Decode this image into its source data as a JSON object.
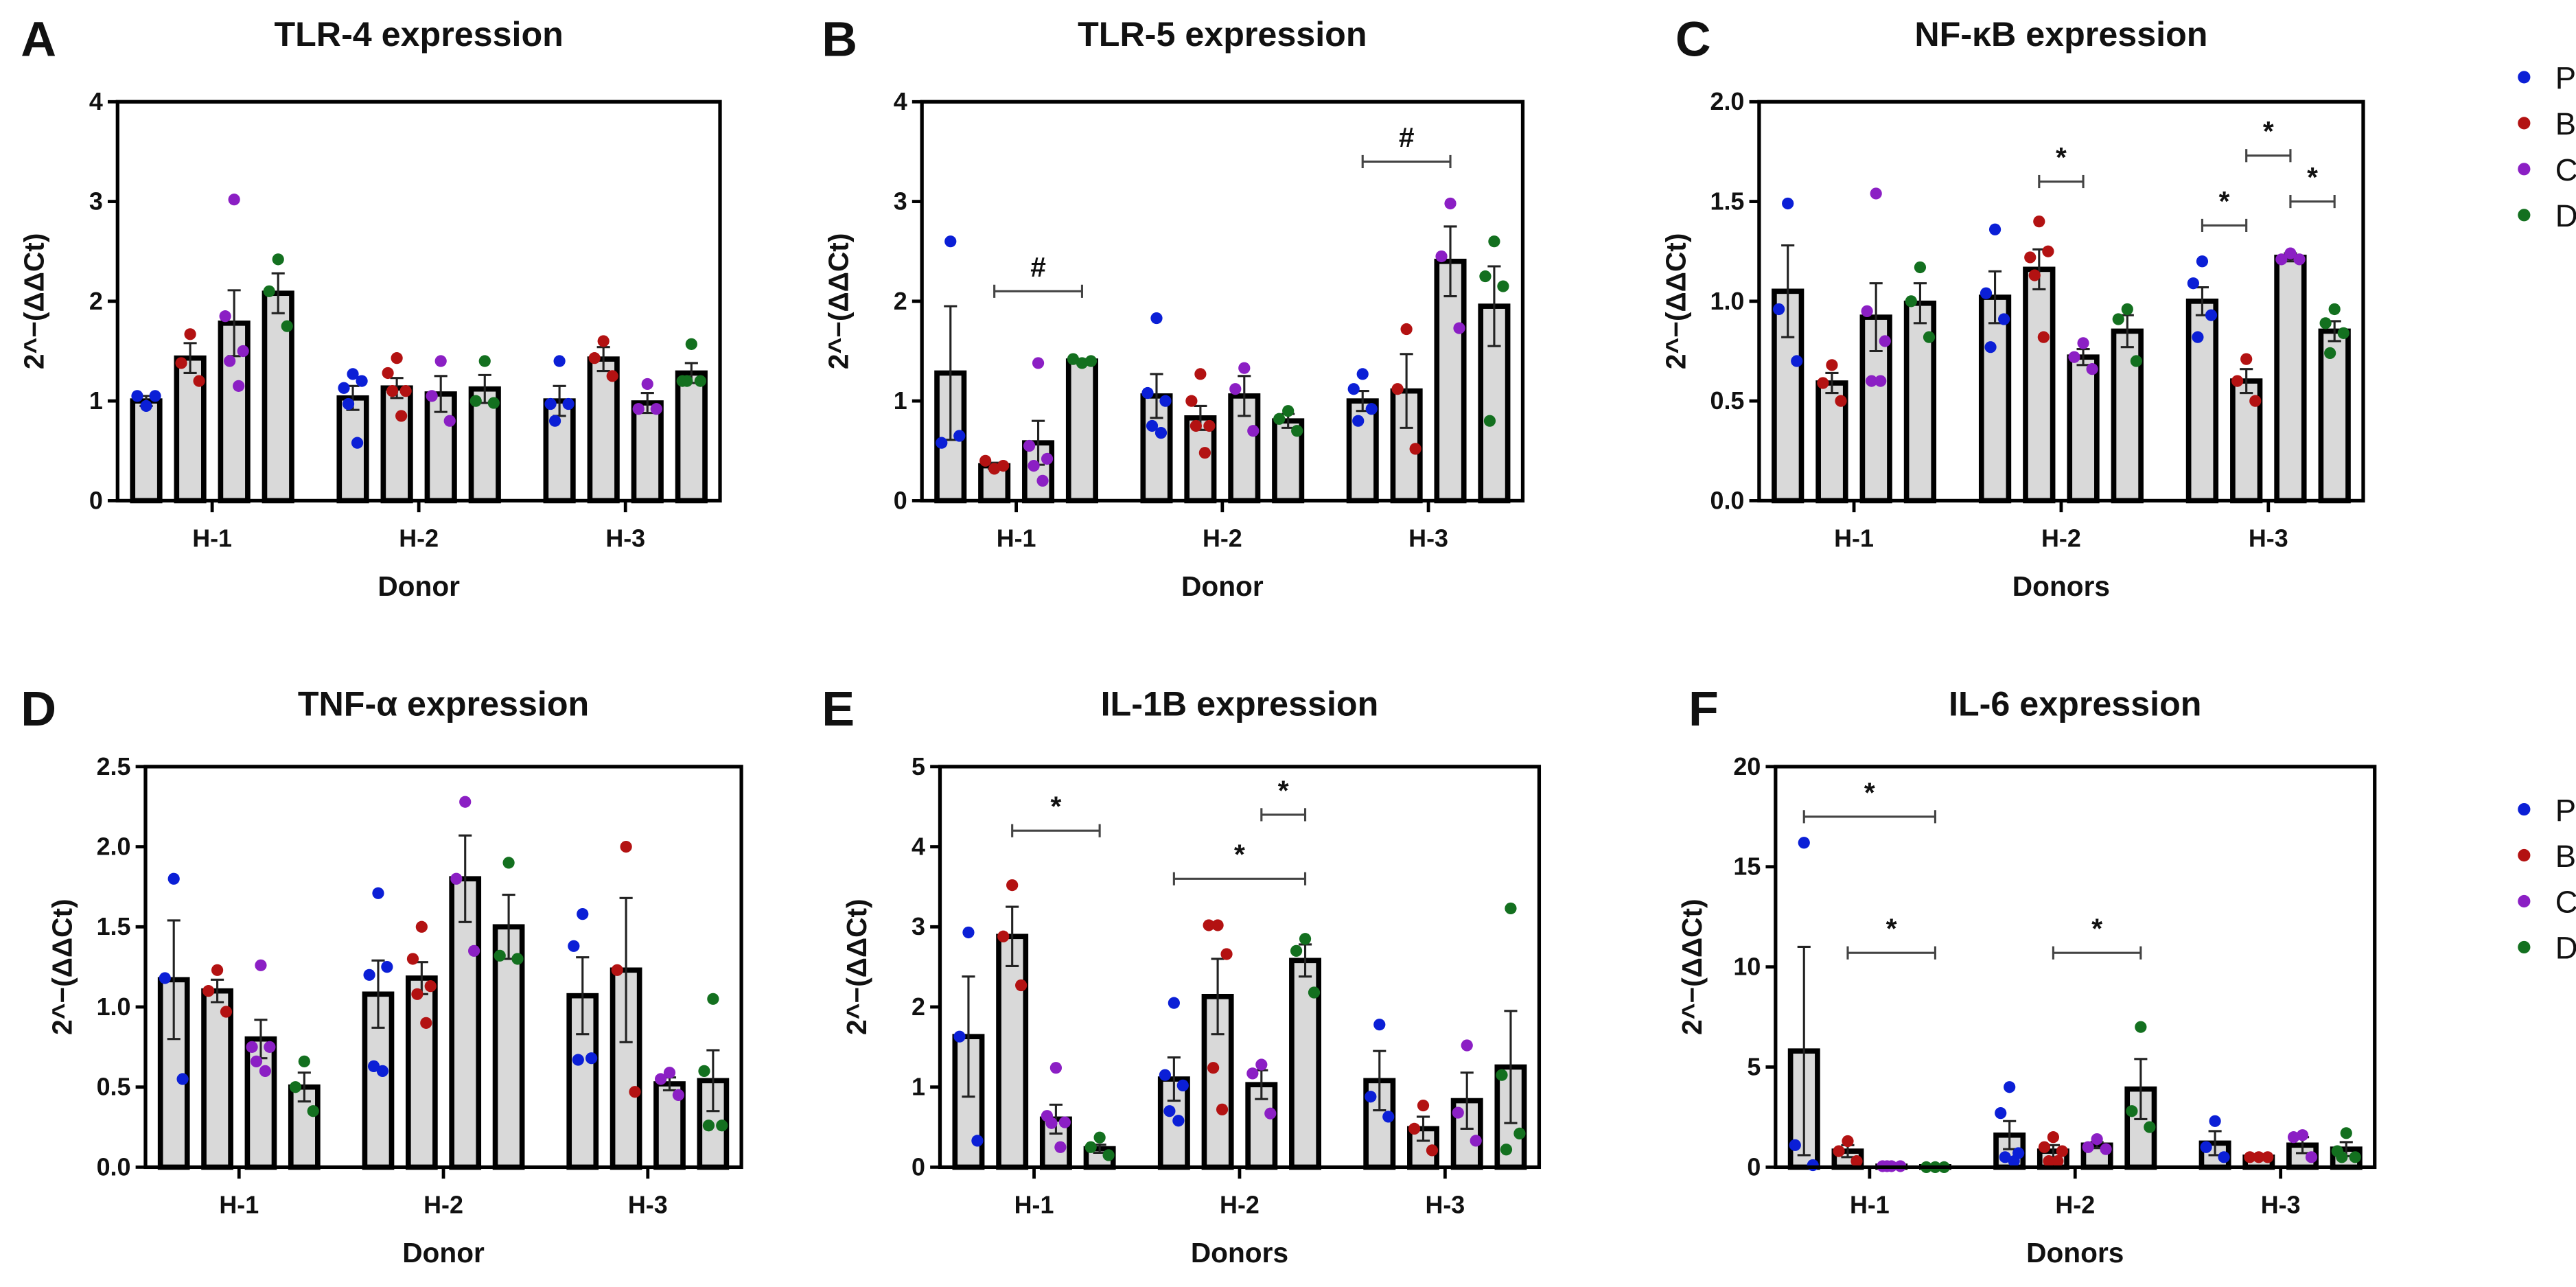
{
  "colors": {
    "P": "#0b1fd6",
    "B": "#b31212",
    "C": "#8b1fc4",
    "D": "#13701f",
    "bar_fill": "#d9d9d9"
  },
  "legend": [
    {
      "key": "P",
      "label": "P"
    },
    {
      "key": "B",
      "label": "B"
    },
    {
      "key": "C",
      "label": "C"
    },
    {
      "key": "D",
      "label": "D"
    }
  ],
  "chart_data": [
    {
      "type": "bar",
      "letter": "A",
      "title": "TLR-4 expression",
      "xlabel": "Donor",
      "ylabel": "2^−(ΔΔCt)",
      "ylim": [
        0,
        4
      ],
      "yticks": [
        "0",
        "1",
        "2",
        "3",
        "4"
      ],
      "categories": [
        "H-1",
        "H-2",
        "H-3"
      ],
      "series_names": [
        "P",
        "B",
        "C",
        "D"
      ],
      "groups": [
        [
          {
            "mean": 1.0,
            "sem": 0.05,
            "points": [
              0.95,
              1.05,
              1.05
            ]
          },
          {
            "mean": 1.43,
            "sem": 0.15,
            "points": [
              1.67,
              1.38,
              1.2
            ]
          },
          {
            "mean": 1.78,
            "sem": 0.33,
            "points": [
              3.02,
              1.85,
              1.5,
              1.4,
              1.15
            ]
          },
          {
            "mean": 2.08,
            "sem": 0.2,
            "points": [
              2.42,
              2.1,
              1.75
            ]
          }
        ],
        [
          {
            "mean": 1.03,
            "sem": 0.12,
            "points": [
              1.27,
              1.13,
              1.2,
              0.97,
              0.58
            ]
          },
          {
            "mean": 1.13,
            "sem": 0.1,
            "points": [
              1.43,
              1.28,
              1.1,
              1.1,
              0.85
            ]
          },
          {
            "mean": 1.07,
            "sem": 0.18,
            "points": [
              1.4,
              1.05,
              0.8
            ]
          },
          {
            "mean": 1.12,
            "sem": 0.14,
            "points": [
              1.4,
              1.0,
              0.98
            ]
          }
        ],
        [
          {
            "mean": 1.0,
            "sem": 0.15,
            "points": [
              1.4,
              0.97,
              0.97,
              0.8
            ]
          },
          {
            "mean": 1.42,
            "sem": 0.12,
            "points": [
              1.6,
              1.43,
              1.25
            ]
          },
          {
            "mean": 0.98,
            "sem": 0.1,
            "points": [
              1.17,
              0.92,
              0.92
            ]
          },
          {
            "mean": 1.28,
            "sem": 0.1,
            "points": [
              1.57,
              1.2,
              1.2,
              1.2
            ]
          }
        ]
      ],
      "annotations": []
    },
    {
      "type": "bar",
      "letter": "B",
      "title": "TLR-5 expression",
      "xlabel": "Donor",
      "ylabel": "2^−(ΔΔCt)",
      "ylim": [
        0,
        4
      ],
      "yticks": [
        "0",
        "1",
        "2",
        "3",
        "4"
      ],
      "categories": [
        "H-1",
        "H-2",
        "H-3"
      ],
      "series_names": [
        "P",
        "B",
        "C",
        "D"
      ],
      "groups": [
        [
          {
            "mean": 1.28,
            "sem": 0.67,
            "points": [
              2.6,
              0.58,
              0.65
            ]
          },
          {
            "mean": 0.35,
            "sem": 0.03,
            "points": [
              0.32,
              0.4,
              0.35
            ]
          },
          {
            "mean": 0.58,
            "sem": 0.22,
            "points": [
              1.38,
              0.55,
              0.42,
              0.35,
              0.2
            ]
          },
          {
            "mean": 1.4,
            "sem": 0.02,
            "points": [
              1.38,
              1.42,
              1.4
            ]
          }
        ],
        [
          {
            "mean": 1.05,
            "sem": 0.22,
            "points": [
              1.83,
              1.08,
              1.0,
              0.75,
              0.68
            ]
          },
          {
            "mean": 0.83,
            "sem": 0.12,
            "points": [
              1.27,
              1.0,
              0.75,
              0.75,
              0.48
            ]
          },
          {
            "mean": 1.05,
            "sem": 0.2,
            "points": [
              1.33,
              1.12,
              0.7
            ]
          },
          {
            "mean": 0.8,
            "sem": 0.07,
            "points": [
              0.9,
              0.82,
              0.7
            ]
          }
        ],
        [
          {
            "mean": 1.0,
            "sem": 0.1,
            "points": [
              1.27,
              1.12,
              0.92,
              0.8
            ]
          },
          {
            "mean": 1.1,
            "sem": 0.37,
            "points": [
              1.72,
              1.12,
              0.52
            ]
          },
          {
            "mean": 2.4,
            "sem": 0.35,
            "points": [
              2.98,
              2.45,
              1.73
            ]
          },
          {
            "mean": 1.95,
            "sem": 0.4,
            "points": [
              2.6,
              2.25,
              2.15,
              0.8
            ]
          }
        ]
      ],
      "annotations": [
        {
          "group": 0,
          "from": 1,
          "to": 3,
          "y": 2.1,
          "label": "#"
        },
        {
          "group": 2,
          "from": 0,
          "to": 2,
          "y": 3.4,
          "label": "#"
        }
      ]
    },
    {
      "type": "bar",
      "letter": "C",
      "title": "NF-κB expression",
      "xlabel": "Donors",
      "ylabel": "2^−(ΔΔCt)",
      "ylim": [
        0,
        2
      ],
      "yticks": [
        "0.0",
        "0.5",
        "1.0",
        "1.5",
        "2.0"
      ],
      "categories": [
        "H-1",
        "H-2",
        "H-3"
      ],
      "series_names": [
        "P",
        "B",
        "C",
        "D"
      ],
      "groups": [
        [
          {
            "mean": 1.05,
            "sem": 0.23,
            "points": [
              1.49,
              0.96,
              0.7
            ]
          },
          {
            "mean": 0.59,
            "sem": 0.05,
            "points": [
              0.68,
              0.59,
              0.5
            ]
          },
          {
            "mean": 0.92,
            "sem": 0.17,
            "points": [
              1.54,
              0.95,
              0.8,
              0.6,
              0.6
            ]
          },
          {
            "mean": 0.99,
            "sem": 0.1,
            "points": [
              1.17,
              1.0,
              0.82
            ]
          }
        ],
        [
          {
            "mean": 1.02,
            "sem": 0.13,
            "points": [
              1.36,
              1.04,
              0.91,
              0.77
            ]
          },
          {
            "mean": 1.16,
            "sem": 0.1,
            "points": [
              1.4,
              1.22,
              1.25,
              1.13,
              0.82
            ]
          },
          {
            "mean": 0.72,
            "sem": 0.04,
            "points": [
              0.79,
              0.72,
              0.66
            ]
          },
          {
            "mean": 0.85,
            "sem": 0.08,
            "points": [
              0.96,
              0.91,
              0.7
            ]
          }
        ],
        [
          {
            "mean": 1.0,
            "sem": 0.07,
            "points": [
              1.2,
              1.09,
              0.93,
              0.82
            ]
          },
          {
            "mean": 0.6,
            "sem": 0.06,
            "points": [
              0.71,
              0.6,
              0.5
            ]
          },
          {
            "mean": 1.22,
            "sem": 0.02,
            "points": [
              1.24,
              1.21,
              1.21
            ]
          },
          {
            "mean": 0.85,
            "sem": 0.05,
            "points": [
              0.96,
              0.89,
              0.84,
              0.74
            ]
          }
        ]
      ],
      "annotations": [
        {
          "group": 1,
          "from": 1,
          "to": 2,
          "y": 1.6,
          "label": "*"
        },
        {
          "group": 2,
          "from": 0,
          "to": 1,
          "y": 1.38,
          "label": "*"
        },
        {
          "group": 2,
          "from": 1,
          "to": 2,
          "y": 1.73,
          "label": "*"
        },
        {
          "group": 2,
          "from": 2,
          "to": 3,
          "y": 1.5,
          "label": "*"
        }
      ]
    },
    {
      "type": "bar",
      "letter": "D",
      "title": "TNF-α expression",
      "xlabel": "Donor",
      "ylabel": "2^−(ΔΔCt)",
      "ylim": [
        0,
        2.5
      ],
      "yticks": [
        "0.0",
        "0.5",
        "1.0",
        "1.5",
        "2.0",
        "2.5"
      ],
      "categories": [
        "H-1",
        "H-2",
        "H-3"
      ],
      "series_names": [
        "P",
        "B",
        "C",
        "D"
      ],
      "groups": [
        [
          {
            "mean": 1.17,
            "sem": 0.37,
            "points": [
              1.8,
              1.18,
              0.55
            ]
          },
          {
            "mean": 1.1,
            "sem": 0.07,
            "points": [
              1.23,
              1.1,
              0.97
            ]
          },
          {
            "mean": 0.8,
            "sem": 0.12,
            "points": [
              1.26,
              0.75,
              0.75,
              0.66,
              0.6
            ]
          },
          {
            "mean": 0.5,
            "sem": 0.09,
            "points": [
              0.66,
              0.5,
              0.35
            ]
          }
        ],
        [
          {
            "mean": 1.08,
            "sem": 0.21,
            "points": [
              1.71,
              1.2,
              1.25,
              0.63,
              0.6
            ]
          },
          {
            "mean": 1.18,
            "sem": 0.1,
            "points": [
              1.5,
              1.3,
              1.13,
              1.08,
              0.9
            ]
          },
          {
            "mean": 1.8,
            "sem": 0.27,
            "points": [
              2.28,
              1.8,
              1.35
            ]
          },
          {
            "mean": 1.5,
            "sem": 0.2,
            "points": [
              1.9,
              1.32,
              1.3
            ]
          }
        ],
        [
          {
            "mean": 1.07,
            "sem": 0.24,
            "points": [
              1.58,
              1.38,
              0.68,
              0.67
            ]
          },
          {
            "mean": 1.23,
            "sem": 0.45,
            "points": [
              2.0,
              1.23,
              0.47
            ]
          },
          {
            "mean": 0.52,
            "sem": 0.04,
            "points": [
              0.59,
              0.55,
              0.45
            ]
          },
          {
            "mean": 0.54,
            "sem": 0.19,
            "points": [
              1.05,
              0.6,
              0.26,
              0.26
            ]
          }
        ]
      ],
      "annotations": []
    },
    {
      "type": "bar",
      "letter": "E",
      "title": "IL-1B expression",
      "xlabel": "Donors",
      "ylabel": "2^−(ΔΔCt)",
      "ylim": [
        0,
        5
      ],
      "yticks": [
        "0",
        "1",
        "2",
        "3",
        "4",
        "5"
      ],
      "categories": [
        "H-1",
        "H-2",
        "H-3"
      ],
      "series_names": [
        "P",
        "B",
        "C",
        "D"
      ],
      "groups": [
        [
          {
            "mean": 1.63,
            "sem": 0.75,
            "points": [
              2.93,
              1.63,
              0.33
            ]
          },
          {
            "mean": 2.88,
            "sem": 0.37,
            "points": [
              3.52,
              2.88,
              2.27
            ]
          },
          {
            "mean": 0.6,
            "sem": 0.18,
            "points": [
              1.24,
              0.64,
              0.56,
              0.55,
              0.25
            ]
          },
          {
            "mean": 0.23,
            "sem": 0.05,
            "points": [
              0.37,
              0.25,
              0.15
            ]
          }
        ],
        [
          {
            "mean": 1.1,
            "sem": 0.27,
            "points": [
              2.05,
              1.15,
              1.02,
              0.7,
              0.58
            ]
          },
          {
            "mean": 2.13,
            "sem": 0.47,
            "points": [
              3.02,
              3.02,
              2.66,
              1.24,
              0.72
            ]
          },
          {
            "mean": 1.03,
            "sem": 0.18,
            "points": [
              1.28,
              1.17,
              0.67
            ]
          },
          {
            "mean": 2.58,
            "sem": 0.2,
            "points": [
              2.85,
              2.7,
              2.18
            ]
          }
        ],
        [
          {
            "mean": 1.08,
            "sem": 0.37,
            "points": [
              1.78,
              0.88,
              0.63
            ]
          },
          {
            "mean": 0.48,
            "sem": 0.15,
            "points": [
              0.77,
              0.48,
              0.21
            ]
          },
          {
            "mean": 0.83,
            "sem": 0.35,
            "points": [
              1.52,
              0.68,
              0.33
            ]
          },
          {
            "mean": 1.25,
            "sem": 0.7,
            "points": [
              3.23,
              1.15,
              0.42,
              0.22
            ]
          }
        ]
      ],
      "annotations": [
        {
          "group": 0,
          "from": 1,
          "to": 3,
          "y": 4.2,
          "label": "*"
        },
        {
          "group": 1,
          "from": 0,
          "to": 3,
          "y": 3.6,
          "label": "*"
        },
        {
          "group": 1,
          "from": 2,
          "to": 3,
          "y": 4.4,
          "label": "*"
        }
      ]
    },
    {
      "type": "bar",
      "letter": "F",
      "title": "IL-6 expression",
      "xlabel": "Donors",
      "ylabel": "2^−(ΔΔCt)",
      "ylim": [
        0,
        20
      ],
      "yticks": [
        "0",
        "5",
        "10",
        "15",
        "20"
      ],
      "categories": [
        "H-1",
        "H-2",
        "H-3"
      ],
      "series_names": [
        "P",
        "B",
        "C",
        "D"
      ],
      "groups": [
        [
          {
            "mean": 5.8,
            "sem": 5.2,
            "points": [
              16.2,
              1.1,
              0.1
            ]
          },
          {
            "mean": 0.8,
            "sem": 0.3,
            "points": [
              1.3,
              0.8,
              0.3
            ]
          },
          {
            "mean": 0.05,
            "sem": 0.01,
            "points": [
              0.05,
              0.05,
              0.05,
              0.05
            ]
          },
          {
            "mean": 0.02,
            "sem": 0.01,
            "points": [
              0.0,
              0.0,
              0.0
            ]
          }
        ],
        [
          {
            "mean": 1.6,
            "sem": 0.7,
            "points": [
              4.0,
              2.7,
              0.7,
              0.5,
              0.3
            ]
          },
          {
            "mean": 0.8,
            "sem": 0.3,
            "points": [
              1.5,
              1.0,
              0.8,
              0.3,
              0.3
            ]
          },
          {
            "mean": 1.1,
            "sem": 0.15,
            "points": [
              1.4,
              1.0,
              0.9
            ]
          },
          {
            "mean": 3.9,
            "sem": 1.5,
            "points": [
              7.0,
              2.8,
              2.0
            ]
          }
        ],
        [
          {
            "mean": 1.2,
            "sem": 0.6,
            "points": [
              2.3,
              1.0,
              0.5
            ]
          },
          {
            "mean": 0.5,
            "sem": 0.05,
            "points": [
              0.5,
              0.5,
              0.5
            ]
          },
          {
            "mean": 1.1,
            "sem": 0.4,
            "points": [
              1.6,
              1.5,
              0.5
            ]
          },
          {
            "mean": 0.9,
            "sem": 0.35,
            "points": [
              1.7,
              0.8,
              0.5,
              0.5
            ]
          }
        ]
      ],
      "annotations": [
        {
          "group": 0,
          "from": 0,
          "to": 3,
          "y": 17.5,
          "label": "*"
        },
        {
          "group": 0,
          "from": 1,
          "to": 3,
          "y": 10.7,
          "label": "*"
        },
        {
          "group": 1,
          "from": 1,
          "to": 3,
          "y": 10.7,
          "label": "*"
        }
      ]
    }
  ]
}
